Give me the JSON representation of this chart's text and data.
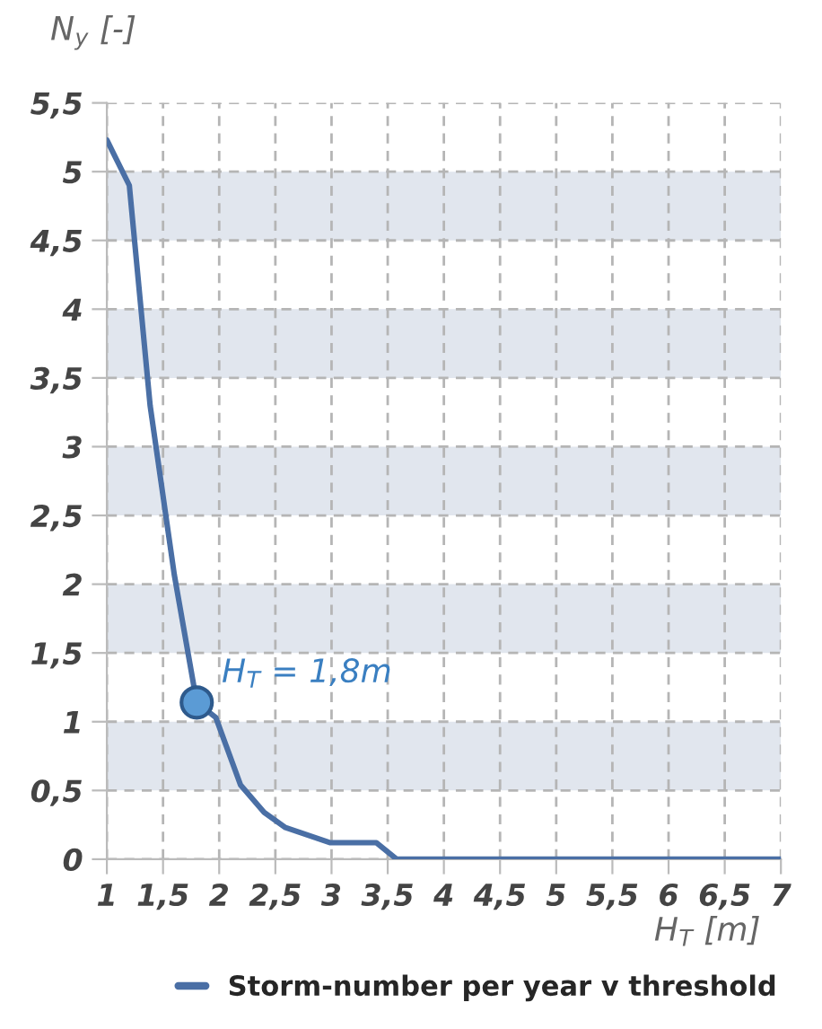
{
  "chart_data": {
    "type": "line",
    "xlabel": "H$_{T}$ [m]",
    "ylabel": "N$_{y}$ [-]",
    "xlim": [
      1,
      7
    ],
    "ylim": [
      0,
      5.5
    ],
    "xticks": [
      1,
      {
        "value": 1.5,
        "label": "1,5"
      },
      2,
      {
        "value": 2.5,
        "label": "2,5"
      },
      3,
      {
        "value": 3.5,
        "label": "3,5"
      },
      4,
      {
        "value": 4.5,
        "label": "4,5"
      },
      5,
      {
        "value": 5.5,
        "label": "5,5"
      },
      6,
      {
        "value": 6.5,
        "label": "6,5"
      },
      7
    ],
    "yticks": [
      0,
      {
        "value": 0.5,
        "label": "0,5"
      },
      1,
      {
        "value": 1.5,
        "label": "1,5"
      },
      2,
      {
        "value": 2.5,
        "label": "2,5"
      },
      3,
      {
        "value": 3.5,
        "label": "3,5"
      },
      4,
      {
        "value": 4.5,
        "label": "4,5"
      },
      5,
      {
        "value": 5.5,
        "label": "5,5"
      }
    ],
    "grid": true,
    "legend": "bottom",
    "line_style": "solid",
    "marker": "none",
    "bands": [
      {
        "axis": "y",
        "from": 0.5,
        "to": 1,
        "color": "#e1e6ee"
      },
      {
        "axis": "y",
        "from": 1.5,
        "to": 2,
        "color": "#e1e6ee"
      },
      {
        "axis": "y",
        "from": 2.5,
        "to": 3,
        "color": "#e1e6ee"
      },
      {
        "axis": "y",
        "from": 3.5,
        "to": 4,
        "color": "#e1e6ee"
      },
      {
        "axis": "y",
        "from": 4.5,
        "to": 5,
        "color": "#e1e6ee"
      }
    ],
    "series": [
      {
        "name": "Storm-number per year v threshold",
        "color": "#4a6fa5",
        "x": [
          1,
          1.2,
          1.385,
          1.6,
          1.8,
          1.97,
          2.19,
          2.4,
          2.59,
          2.99,
          3.4,
          3.58,
          7
        ],
        "values": [
          5.23,
          4.9,
          3.3,
          2.07,
          1.14,
          1.03,
          0.54,
          0.34,
          0.23,
          0.12,
          0.12,
          0,
          0
        ]
      },
      {
        "type": "scatter",
        "marker": "circle",
        "color": "#5b9bd5",
        "x": [
          1.8
        ],
        "values": [
          1.14
        ]
      }
    ],
    "annotations": [
      {
        "text": "H$_{T}$ = 1,8m",
        "x": 1.8,
        "y": 1.14
      }
    ]
  }
}
